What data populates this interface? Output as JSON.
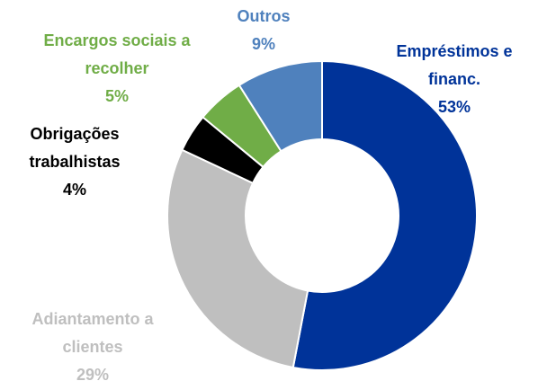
{
  "chart_data": {
    "type": "donut",
    "categories": [
      "Empréstimos e financ.",
      "Adiantamento a clientes",
      "Obrigações trabalhistas",
      "Encargos sociais a recolher",
      "Outros"
    ],
    "values": [
      53,
      29,
      4,
      5,
      9
    ],
    "value_labels": [
      "53%",
      "29%",
      "4%",
      "5%",
      "9%"
    ],
    "colors": [
      "#003399",
      "#bfbfbf",
      "#000000",
      "#70ad47",
      "#4f81bd"
    ]
  }
}
